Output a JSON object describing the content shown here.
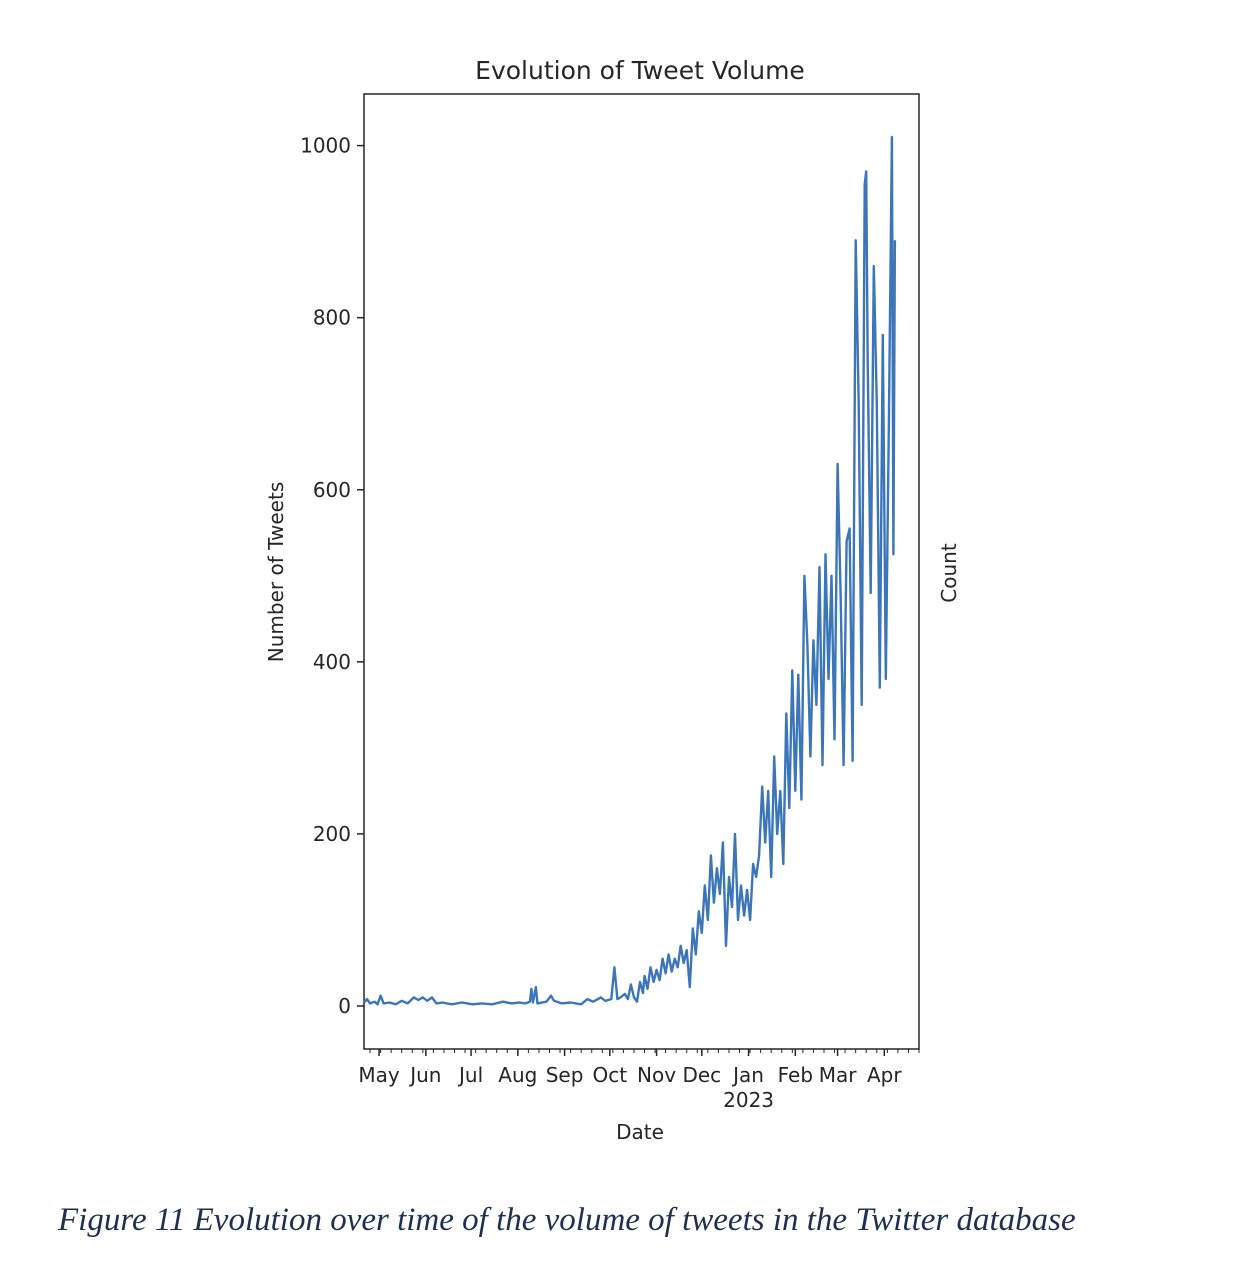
{
  "caption": "Figure 11 Evolution over time of the volume of tweets in the Twitter database",
  "chart_data": {
    "type": "line",
    "title": "Evolution of Tweet Volume",
    "xlabel": "Date",
    "ylabel": "Number of Tweets",
    "right_label": "Count",
    "color": "#3d76b8",
    "grid": false,
    "legend": "none",
    "ylim": [
      -50,
      1060
    ],
    "xlim": [
      "2022-04-21",
      "2023-04-24"
    ],
    "yticks": [
      0,
      200,
      400,
      600,
      800,
      1000
    ],
    "xticks": [
      {
        "date": "2022-05-01",
        "label": "May"
      },
      {
        "date": "2022-06-01",
        "label": "Jun"
      },
      {
        "date": "2022-07-01",
        "label": "Jul"
      },
      {
        "date": "2022-08-01",
        "label": "Aug"
      },
      {
        "date": "2022-09-01",
        "label": "Sep"
      },
      {
        "date": "2022-10-01",
        "label": "Oct"
      },
      {
        "date": "2022-11-01",
        "label": "Nov"
      },
      {
        "date": "2022-12-01",
        "label": "Dec"
      },
      {
        "date": "2023-01-01",
        "label": "Jan",
        "sublabel": "2023"
      },
      {
        "date": "2023-02-01",
        "label": "Feb"
      },
      {
        "date": "2023-03-01",
        "label": "Mar"
      },
      {
        "date": "2023-04-01",
        "label": "Apr"
      }
    ],
    "series": [
      {
        "points": [
          [
            "2022-04-21",
            4
          ],
          [
            "2022-04-23",
            8
          ],
          [
            "2022-04-25",
            3
          ],
          [
            "2022-04-28",
            5
          ],
          [
            "2022-04-30",
            2
          ],
          [
            "2022-05-02",
            12
          ],
          [
            "2022-05-04",
            3
          ],
          [
            "2022-05-08",
            4
          ],
          [
            "2022-05-12",
            2
          ],
          [
            "2022-05-16",
            6
          ],
          [
            "2022-05-20",
            3
          ],
          [
            "2022-05-24",
            10
          ],
          [
            "2022-05-27",
            7
          ],
          [
            "2022-05-30",
            10
          ],
          [
            "2022-06-02",
            6
          ],
          [
            "2022-06-05",
            10
          ],
          [
            "2022-06-08",
            3
          ],
          [
            "2022-06-12",
            4
          ],
          [
            "2022-06-18",
            2
          ],
          [
            "2022-06-25",
            4
          ],
          [
            "2022-07-02",
            2
          ],
          [
            "2022-07-08",
            3
          ],
          [
            "2022-07-15",
            2
          ],
          [
            "2022-07-22",
            5
          ],
          [
            "2022-07-28",
            3
          ],
          [
            "2022-08-02",
            4
          ],
          [
            "2022-08-06",
            3
          ],
          [
            "2022-08-09",
            5
          ],
          [
            "2022-08-10",
            20
          ],
          [
            "2022-08-11",
            4
          ],
          [
            "2022-08-13",
            22
          ],
          [
            "2022-08-14",
            3
          ],
          [
            "2022-08-20",
            5
          ],
          [
            "2022-08-23",
            12
          ],
          [
            "2022-08-25",
            6
          ],
          [
            "2022-08-30",
            3
          ],
          [
            "2022-09-05",
            4
          ],
          [
            "2022-09-12",
            2
          ],
          [
            "2022-09-16",
            8
          ],
          [
            "2022-09-20",
            5
          ],
          [
            "2022-09-25",
            10
          ],
          [
            "2022-09-28",
            6
          ],
          [
            "2022-10-02",
            8
          ],
          [
            "2022-10-04",
            45
          ],
          [
            "2022-10-06",
            8
          ],
          [
            "2022-10-08",
            10
          ],
          [
            "2022-10-11",
            14
          ],
          [
            "2022-10-13",
            8
          ],
          [
            "2022-10-15",
            25
          ],
          [
            "2022-10-17",
            10
          ],
          [
            "2022-10-19",
            5
          ],
          [
            "2022-10-21",
            28
          ],
          [
            "2022-10-23",
            15
          ],
          [
            "2022-10-24",
            35
          ],
          [
            "2022-10-26",
            20
          ],
          [
            "2022-10-28",
            45
          ],
          [
            "2022-10-30",
            28
          ],
          [
            "2022-11-01",
            42
          ],
          [
            "2022-11-03",
            30
          ],
          [
            "2022-11-05",
            55
          ],
          [
            "2022-11-07",
            38
          ],
          [
            "2022-11-09",
            60
          ],
          [
            "2022-11-11",
            40
          ],
          [
            "2022-11-13",
            55
          ],
          [
            "2022-11-15",
            45
          ],
          [
            "2022-11-17",
            70
          ],
          [
            "2022-11-19",
            50
          ],
          [
            "2022-11-21",
            65
          ],
          [
            "2022-11-23",
            22
          ],
          [
            "2022-11-25",
            90
          ],
          [
            "2022-11-27",
            60
          ],
          [
            "2022-11-29",
            110
          ],
          [
            "2022-12-01",
            85
          ],
          [
            "2022-12-03",
            140
          ],
          [
            "2022-12-05",
            100
          ],
          [
            "2022-12-07",
            175
          ],
          [
            "2022-12-09",
            120
          ],
          [
            "2022-12-11",
            160
          ],
          [
            "2022-12-13",
            130
          ],
          [
            "2022-12-15",
            190
          ],
          [
            "2022-12-17",
            70
          ],
          [
            "2022-12-19",
            150
          ],
          [
            "2022-12-21",
            115
          ],
          [
            "2022-12-23",
            200
          ],
          [
            "2022-12-25",
            100
          ],
          [
            "2022-12-27",
            140
          ],
          [
            "2022-12-29",
            105
          ],
          [
            "2022-12-31",
            135
          ],
          [
            "2023-01-02",
            100
          ],
          [
            "2023-01-04",
            165
          ],
          [
            "2023-01-06",
            150
          ],
          [
            "2023-01-08",
            175
          ],
          [
            "2023-01-10",
            255
          ],
          [
            "2023-01-12",
            190
          ],
          [
            "2023-01-14",
            250
          ],
          [
            "2023-01-16",
            150
          ],
          [
            "2023-01-18",
            290
          ],
          [
            "2023-01-20",
            200
          ],
          [
            "2023-01-22",
            250
          ],
          [
            "2023-01-24",
            165
          ],
          [
            "2023-01-26",
            340
          ],
          [
            "2023-01-28",
            230
          ],
          [
            "2023-01-30",
            390
          ],
          [
            "2023-02-01",
            250
          ],
          [
            "2023-02-03",
            385
          ],
          [
            "2023-02-05",
            240
          ],
          [
            "2023-02-07",
            500
          ],
          [
            "2023-02-09",
            420
          ],
          [
            "2023-02-11",
            290
          ],
          [
            "2023-02-13",
            425
          ],
          [
            "2023-02-15",
            350
          ],
          [
            "2023-02-17",
            510
          ],
          [
            "2023-02-19",
            280
          ],
          [
            "2023-02-21",
            525
          ],
          [
            "2023-02-23",
            380
          ],
          [
            "2023-02-25",
            500
          ],
          [
            "2023-02-27",
            310
          ],
          [
            "2023-03-01",
            630
          ],
          [
            "2023-03-03",
            480
          ],
          [
            "2023-03-05",
            280
          ],
          [
            "2023-03-07",
            540
          ],
          [
            "2023-03-09",
            555
          ],
          [
            "2023-03-11",
            285
          ],
          [
            "2023-03-13",
            890
          ],
          [
            "2023-03-15",
            700
          ],
          [
            "2023-03-17",
            350
          ],
          [
            "2023-03-19",
            955
          ],
          [
            "2023-03-20",
            970
          ],
          [
            "2023-03-21",
            750
          ],
          [
            "2023-03-23",
            480
          ],
          [
            "2023-03-25",
            860
          ],
          [
            "2023-03-27",
            700
          ],
          [
            "2023-03-29",
            370
          ],
          [
            "2023-03-31",
            780
          ],
          [
            "2023-04-02",
            380
          ],
          [
            "2023-04-04",
            670
          ],
          [
            "2023-04-06",
            1010
          ],
          [
            "2023-04-07",
            525
          ],
          [
            "2023-04-08",
            890
          ]
        ]
      }
    ]
  }
}
